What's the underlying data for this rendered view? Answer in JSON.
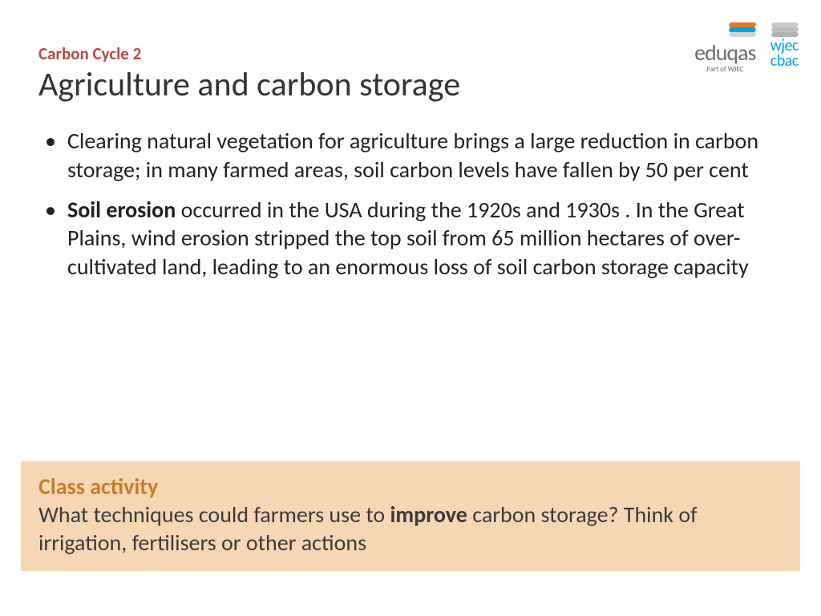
{
  "colors": {
    "topic": "#b84a3f",
    "title": "#333333",
    "body": "#222222",
    "activity_bg": "#f7d7b3",
    "activity_title": "#c77c2b",
    "activity_body": "#3a3a3a"
  },
  "logos": {
    "eduqas_text": "eduqas",
    "eduqas_sub": "Part of WJEC",
    "wjec_line1": "wjec",
    "wjec_line2": "cbac"
  },
  "topic": "Carbon Cycle 2",
  "title": "Agriculture and carbon storage",
  "bullets": [
    {
      "pre_bold": "",
      "bold": "",
      "post_bold": "Clearing natural vegetation for agriculture brings a large reduction in carbon storage; in many farmed areas, soil carbon levels have fallen by 50 per cent"
    },
    {
      "pre_bold": "",
      "bold": "Soil erosion",
      "post_bold": " occurred in the USA during the 1920s and 1930s . In the Great Plains, wind erosion stripped the top soil from 65 million hectares of over-cultivated land, leading to an enormous loss of soil carbon storage capacity"
    }
  ],
  "activity": {
    "title": "Class activity",
    "body_pre": "What techniques could farmers use to ",
    "body_bold": "improve",
    "body_post": " carbon storage? Think of irrigation, fertilisers or other actions"
  },
  "typography": {
    "topic_fontsize": 21,
    "title_fontsize": 42,
    "body_fontsize": 28,
    "activity_fontsize": 28
  }
}
